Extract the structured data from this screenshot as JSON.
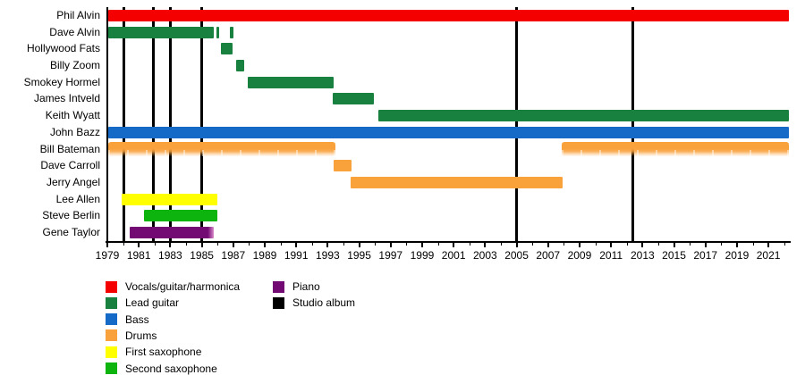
{
  "chart_data": {
    "type": "gantt",
    "description_of_content": "Band member tenure timeline with studio album release markers",
    "x_axis": {
      "min": 1979,
      "max": 2022.3,
      "tick_label_years": [
        1979,
        1981,
        1983,
        1985,
        1987,
        1989,
        1991,
        1993,
        1995,
        1997,
        1999,
        2001,
        2003,
        2005,
        2007,
        2009,
        2011,
        2013,
        2015,
        2017,
        2019,
        2021
      ],
      "minor_tick_step": 1,
      "grid": false
    },
    "legend_position": "below",
    "roles": {
      "vocals": {
        "label": "Vocals/guitar/harmonica",
        "color": "#F40000"
      },
      "lead_guitar": {
        "label": "Lead guitar",
        "color": "#18813F"
      },
      "bass": {
        "label": "Bass",
        "color": "#1569C7"
      },
      "drums": {
        "label": "Drums",
        "color": "#F9A13B"
      },
      "first_sax": {
        "label": "First saxophone",
        "color": "#FFFF00"
      },
      "second_sax": {
        "label": "Second saxophone",
        "color": "#0EB40E"
      },
      "piano": {
        "label": "Piano",
        "color": "#730973"
      },
      "studio_album": {
        "label": "Studio album",
        "color": "#000000"
      }
    },
    "members": [
      {
        "name": "Phil Alvin",
        "role": "vocals",
        "intervals": [
          [
            1979.05,
            2022.3
          ]
        ]
      },
      {
        "name": "Dave Alvin",
        "role": "lead_guitar",
        "intervals": [
          [
            1979.05,
            1985.75
          ],
          [
            1985.95,
            1986.12
          ],
          [
            1986.8,
            1987.0
          ]
        ]
      },
      {
        "name": "Hollywood Fats",
        "role": "lead_guitar",
        "intervals": [
          [
            1986.2,
            1986.98
          ]
        ]
      },
      {
        "name": "Billy Zoom",
        "role": "lead_guitar",
        "intervals": [
          [
            1987.2,
            1987.7
          ]
        ]
      },
      {
        "name": "Smokey Hormel",
        "role": "lead_guitar",
        "intervals": [
          [
            1987.9,
            1993.4
          ]
        ]
      },
      {
        "name": "James Intveld",
        "role": "lead_guitar",
        "intervals": [
          [
            1993.3,
            1995.95
          ]
        ]
      },
      {
        "name": "Keith Wyatt",
        "role": "lead_guitar",
        "intervals": [
          [
            1996.2,
            2022.3
          ]
        ]
      },
      {
        "name": "John Bazz",
        "role": "bass",
        "intervals": [
          [
            1979.05,
            2022.3
          ]
        ]
      },
      {
        "name": "Bill Bateman",
        "role": "drums",
        "style": "faded",
        "intervals": [
          [
            1979.05,
            1993.5
          ],
          [
            2007.85,
            2022.3
          ]
        ]
      },
      {
        "name": "Dave Carroll",
        "role": "drums",
        "intervals": [
          [
            1993.35,
            1994.5
          ]
        ]
      },
      {
        "name": "Jerry Angel",
        "role": "drums",
        "intervals": [
          [
            1994.45,
            2007.9
          ]
        ]
      },
      {
        "name": "Lee Allen",
        "role": "first_sax",
        "intervals": [
          [
            1979.9,
            1986.0
          ]
        ]
      },
      {
        "name": "Steve Berlin",
        "role": "second_sax",
        "intervals": [
          [
            1981.35,
            1986.0
          ]
        ]
      },
      {
        "name": "Gene Taylor",
        "role": "piano",
        "style": "fade_right",
        "intervals": [
          [
            1980.4,
            1985.75
          ]
        ]
      }
    ],
    "album_release_years": [
      1980.05,
      1981.95,
      1983.0,
      1985.0,
      2005.0,
      2012.4
    ],
    "legend": {
      "column1": [
        "vocals",
        "lead_guitar",
        "bass",
        "drums",
        "first_sax",
        "second_sax"
      ],
      "column2": [
        "piano",
        "studio_album"
      ]
    }
  }
}
